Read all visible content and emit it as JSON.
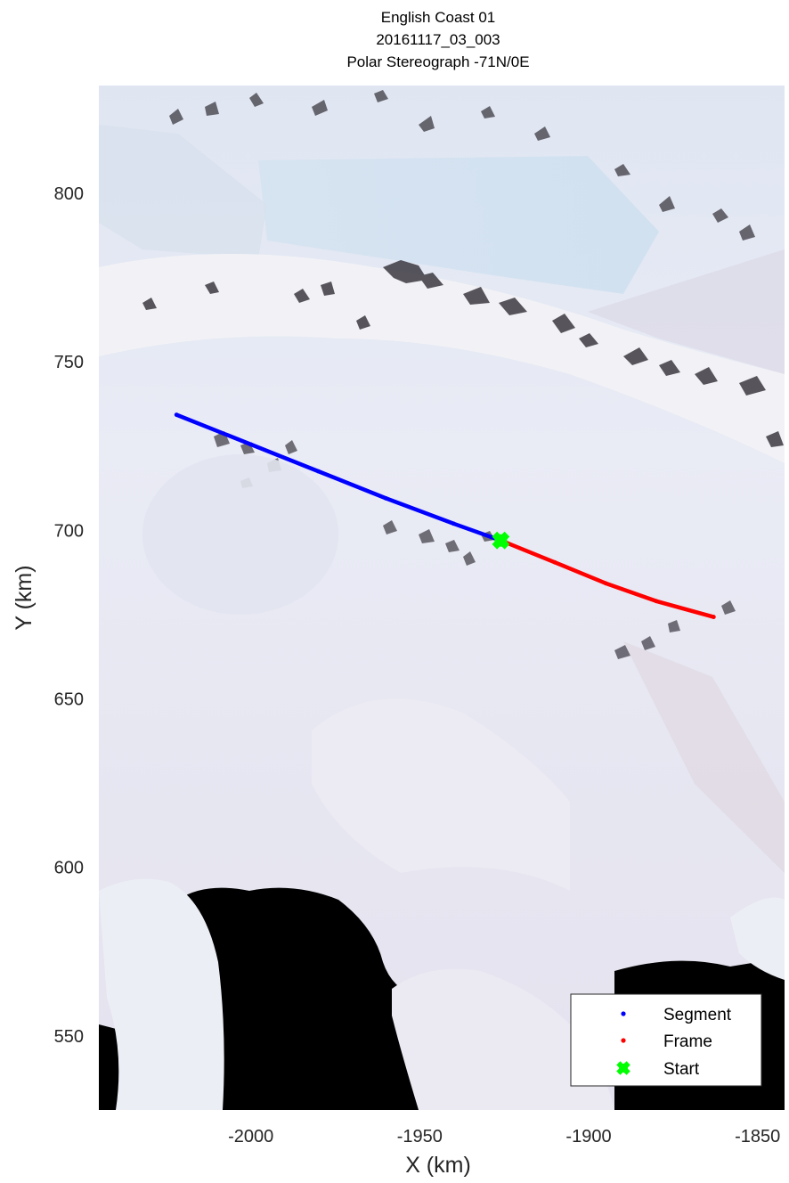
{
  "figure": {
    "title_lines": [
      "English Coast 01",
      "20161117_03_003",
      "Polar Stereograph -71N/0E"
    ]
  },
  "colors": {
    "segment": "#0000ff",
    "frame": "#ff0000",
    "start": "#00ff00",
    "ocean": "#000000",
    "ice": "#e6e8f2"
  },
  "chart_data": {
    "type": "scatter",
    "title": "English Coast 01 / 20161117_03_003 / Polar Stereograph -71N/0E",
    "xlabel": "X (km)",
    "ylabel": "Y (km)",
    "xlim": [
      -2045,
      -1842
    ],
    "ylim": [
      528,
      832
    ],
    "xticks": [
      -2000,
      -1950,
      -1900,
      -1850
    ],
    "yticks": [
      550,
      600,
      650,
      700,
      750,
      800
    ],
    "xtick_labels": [
      "-2000",
      "-1950",
      "-1900",
      "-1850"
    ],
    "ytick_labels": [
      "550",
      "600",
      "650",
      "700",
      "750",
      "800"
    ],
    "background": "satellite imagery (Antarctic ice, mountains and open ocean)",
    "grid": false,
    "legend_position": "bottom-right",
    "series": [
      {
        "name": "Segment",
        "color": "#0000ff",
        "marker": "dot",
        "x": [
          -2022,
          -2000,
          -1980,
          -1960,
          -1940,
          -1926
        ],
        "y": [
          734.3,
          725.5,
          717.5,
          709.5,
          702.0,
          697.0
        ]
      },
      {
        "name": "Frame",
        "color": "#ff0000",
        "marker": "dot",
        "x": [
          -1926,
          -1910,
          -1895,
          -1880,
          -1863
        ],
        "y": [
          697.0,
          690.5,
          684.3,
          679.0,
          674.3
        ]
      },
      {
        "name": "Start",
        "color": "#00ff00",
        "marker": "x-star",
        "x": [
          -1926
        ],
        "y": [
          697.0
        ]
      }
    ]
  }
}
